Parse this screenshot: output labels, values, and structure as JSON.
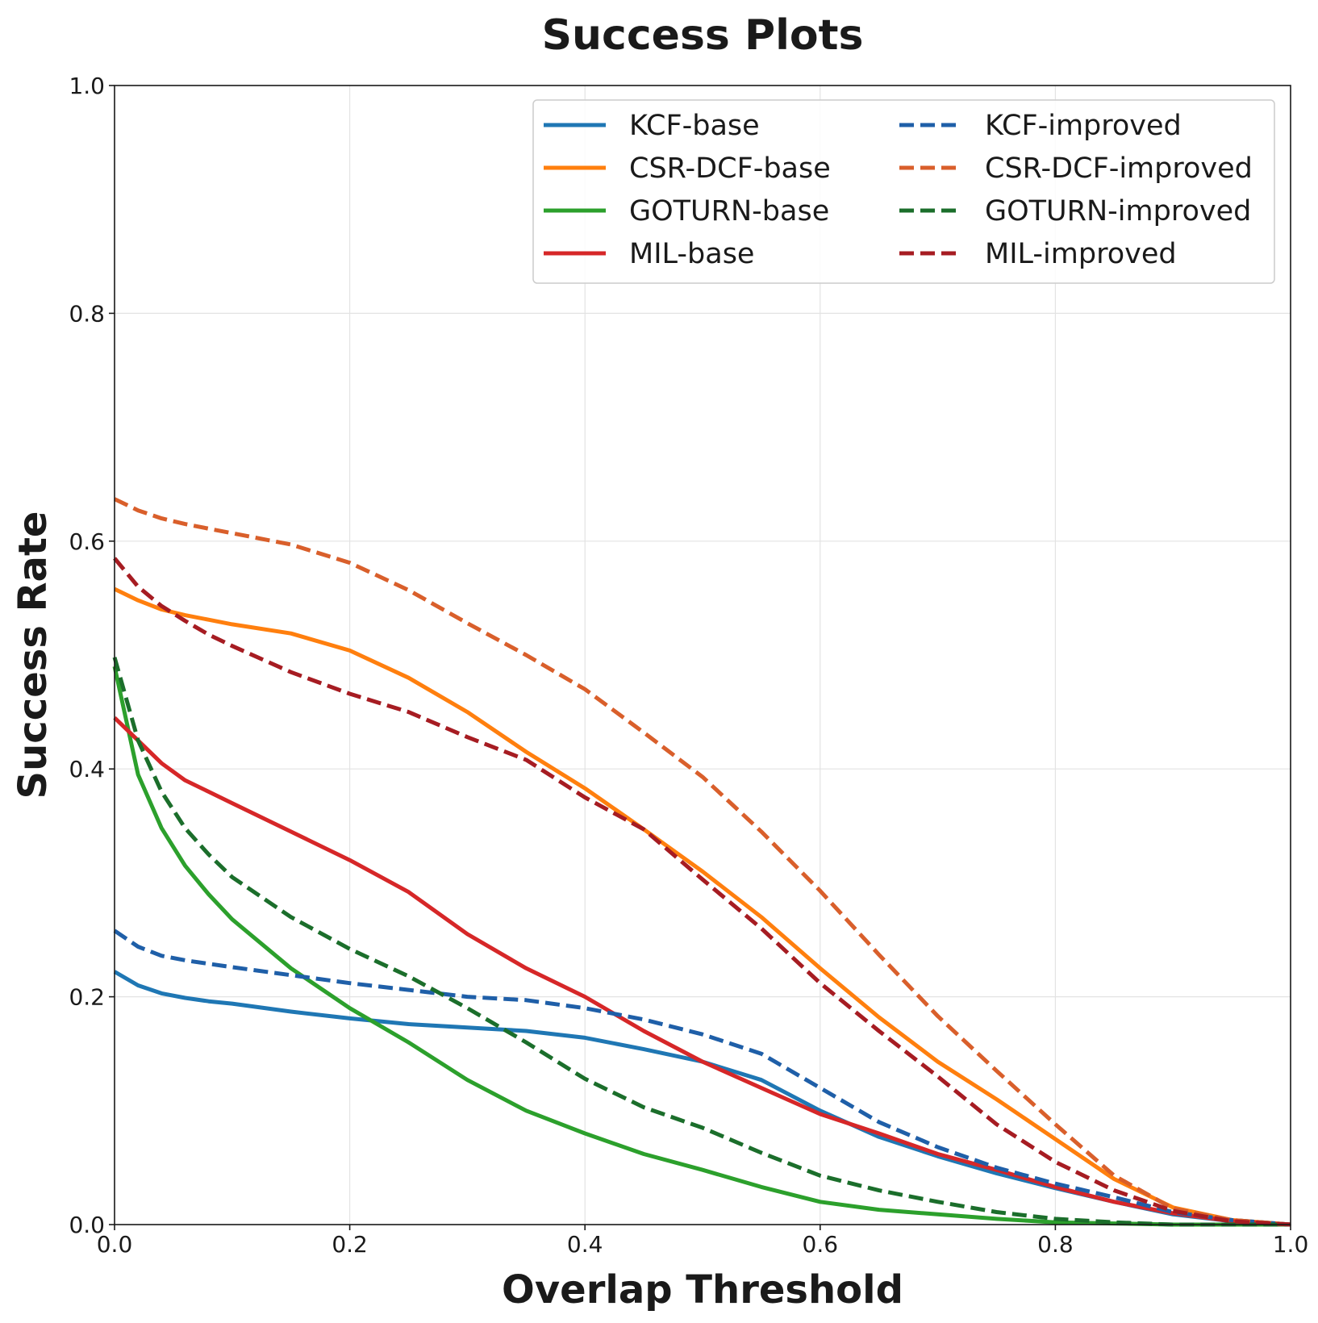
{
  "chart_data": {
    "type": "line",
    "title": "Success Plots",
    "xlabel": "Overlap Threshold",
    "ylabel": "Success Rate",
    "xlim": [
      0,
      1
    ],
    "ylim": [
      0,
      1
    ],
    "xticks": [
      "0.0",
      "0.2",
      "0.4",
      "0.6",
      "0.8",
      "1.0"
    ],
    "yticks": [
      "0.0",
      "0.2",
      "0.4",
      "0.6",
      "0.8",
      "1.0"
    ],
    "grid": true,
    "legend_position": "top-right",
    "legend_columns": 2,
    "x": [
      0,
      0.02,
      0.04,
      0.06,
      0.08,
      0.1,
      0.15,
      0.2,
      0.25,
      0.3,
      0.35,
      0.4,
      0.45,
      0.5,
      0.55,
      0.6,
      0.65,
      0.7,
      0.75,
      0.8,
      0.85,
      0.9,
      0.95,
      1.0
    ],
    "series": [
      {
        "name": "KCF-base",
        "color": "#1f77b4",
        "dash": "solid",
        "values": [
          0.222,
          0.21,
          0.203,
          0.199,
          0.196,
          0.194,
          0.187,
          0.181,
          0.176,
          0.173,
          0.17,
          0.164,
          0.154,
          0.143,
          0.127,
          0.1,
          0.077,
          0.06,
          0.045,
          0.032,
          0.02,
          0.009,
          0.003,
          0.0
        ]
      },
      {
        "name": "CSR-DCF-base",
        "color": "#ff7f0e",
        "dash": "solid",
        "values": [
          0.558,
          0.548,
          0.54,
          0.535,
          0.531,
          0.527,
          0.519,
          0.504,
          0.48,
          0.45,
          0.415,
          0.383,
          0.347,
          0.31,
          0.27,
          0.225,
          0.182,
          0.143,
          0.11,
          0.075,
          0.04,
          0.015,
          0.004,
          0.0
        ]
      },
      {
        "name": "GOTURN-base",
        "color": "#2ca02c",
        "dash": "solid",
        "values": [
          0.49,
          0.395,
          0.348,
          0.315,
          0.29,
          0.268,
          0.225,
          0.19,
          0.16,
          0.127,
          0.1,
          0.08,
          0.062,
          0.048,
          0.033,
          0.02,
          0.013,
          0.009,
          0.005,
          0.002,
          0.001,
          0.0,
          0.0,
          0.0
        ]
      },
      {
        "name": "MIL-base",
        "color": "#d62728",
        "dash": "solid",
        "values": [
          0.445,
          0.425,
          0.405,
          0.39,
          0.38,
          0.37,
          0.345,
          0.32,
          0.292,
          0.255,
          0.225,
          0.2,
          0.17,
          0.143,
          0.12,
          0.097,
          0.08,
          0.062,
          0.048,
          0.033,
          0.02,
          0.01,
          0.003,
          0.0
        ]
      },
      {
        "name": "KCF-improved",
        "color": "#1f5fa8",
        "dash": "dashed",
        "values": [
          0.258,
          0.244,
          0.236,
          0.232,
          0.229,
          0.226,
          0.219,
          0.212,
          0.206,
          0.2,
          0.197,
          0.19,
          0.18,
          0.167,
          0.15,
          0.12,
          0.09,
          0.068,
          0.05,
          0.036,
          0.024,
          0.011,
          0.004,
          0.0
        ]
      },
      {
        "name": "CSR-DCF-improved",
        "color": "#d95f2b",
        "dash": "dashed",
        "values": [
          0.637,
          0.627,
          0.62,
          0.615,
          0.611,
          0.607,
          0.597,
          0.581,
          0.557,
          0.528,
          0.5,
          0.47,
          0.432,
          0.393,
          0.345,
          0.293,
          0.237,
          0.183,
          0.135,
          0.088,
          0.043,
          0.014,
          0.004,
          0.0
        ]
      },
      {
        "name": "GOTURN-improved",
        "color": "#1b6e2b",
        "dash": "dashed",
        "values": [
          0.498,
          0.425,
          0.38,
          0.348,
          0.325,
          0.305,
          0.27,
          0.242,
          0.218,
          0.19,
          0.16,
          0.128,
          0.103,
          0.085,
          0.063,
          0.043,
          0.03,
          0.02,
          0.011,
          0.005,
          0.002,
          0.0,
          0.0,
          0.0
        ]
      },
      {
        "name": "MIL-improved",
        "color": "#a61c22",
        "dash": "dashed",
        "values": [
          0.585,
          0.56,
          0.543,
          0.53,
          0.518,
          0.508,
          0.485,
          0.466,
          0.45,
          0.428,
          0.408,
          0.375,
          0.347,
          0.303,
          0.26,
          0.212,
          0.17,
          0.13,
          0.088,
          0.055,
          0.03,
          0.012,
          0.003,
          0.0
        ]
      }
    ]
  }
}
